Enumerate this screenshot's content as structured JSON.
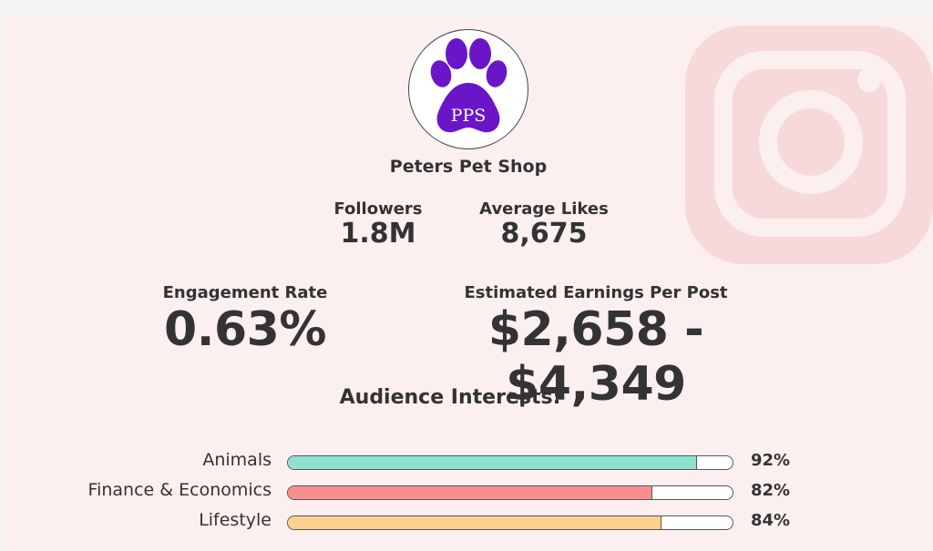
{
  "brand": {
    "logo_text": "PPS",
    "logo_color": "#6a16c8",
    "shop_name": "Peters Pet Shop",
    "bg_icon": "instagram-icon",
    "bg_icon_color": "#f7d8d8"
  },
  "stats": {
    "followers": {
      "label": "Followers",
      "value": "1.8M"
    },
    "average_likes": {
      "label": "Average Likes",
      "value": "8,675"
    },
    "engagement_rate": {
      "label": "Engagement Rate",
      "value": "0.63%"
    },
    "earnings": {
      "label": "Estimated Earnings Per Post",
      "value": "$2,658 - $4,349"
    }
  },
  "interests": {
    "heading": "Audience Interests:",
    "items": [
      {
        "label": "Animals",
        "percent": 92,
        "percent_text": "92%",
        "color": "#8be3cf"
      },
      {
        "label": "Finance & Economics",
        "percent": 82,
        "percent_text": "82%",
        "color": "#f78f8f"
      },
      {
        "label": "Lifestyle",
        "percent": 84,
        "percent_text": "84%",
        "color": "#fbd28d"
      }
    ]
  }
}
